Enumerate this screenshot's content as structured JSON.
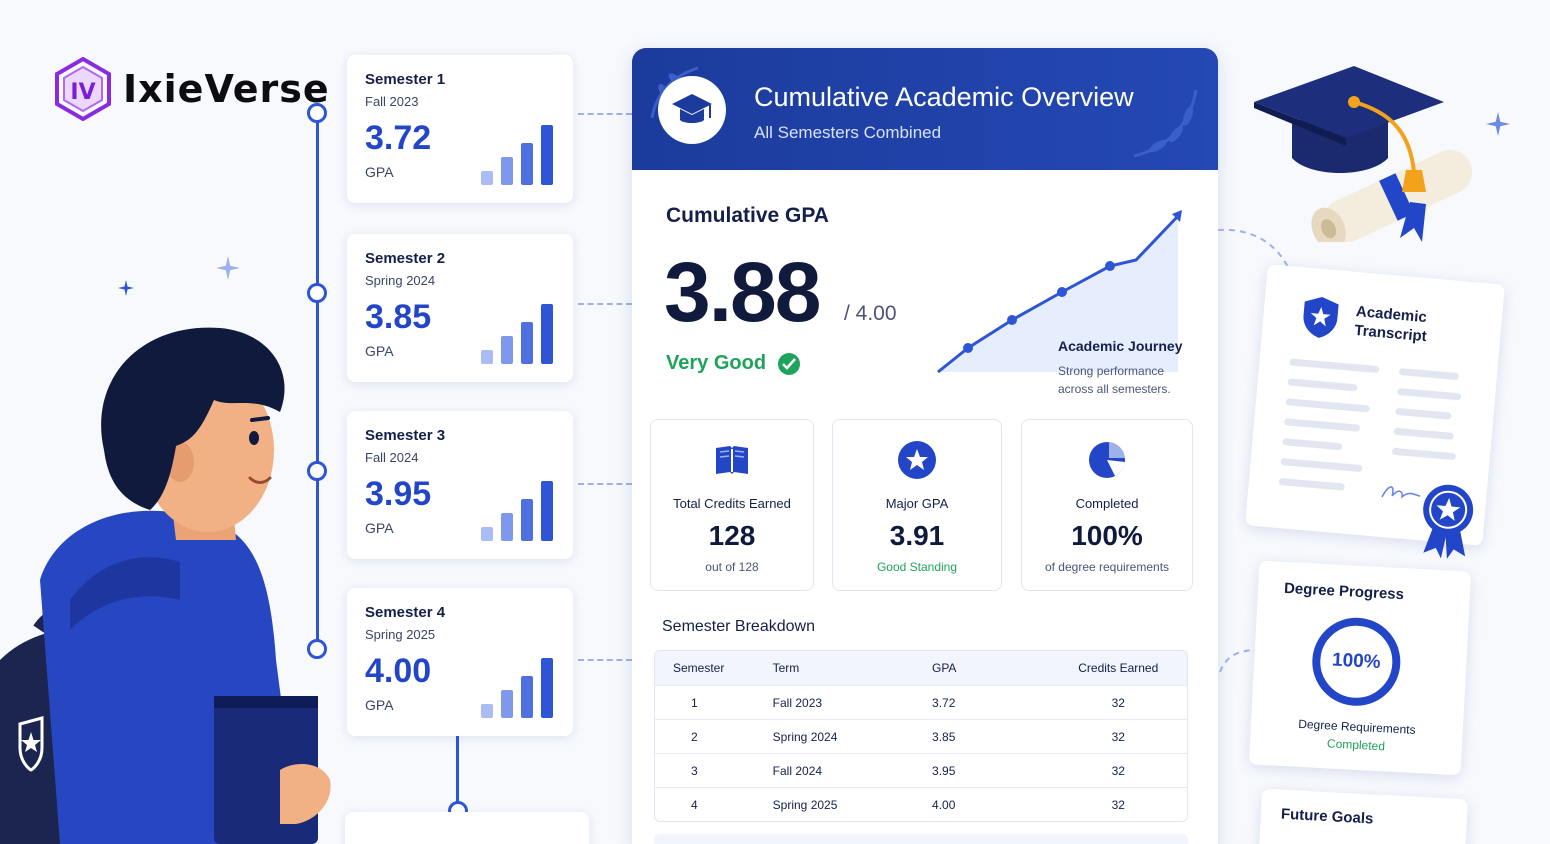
{
  "brand": {
    "name": "IxieVerse"
  },
  "semesters": [
    {
      "title": "Semester 1",
      "term": "Fall 2023",
      "gpa": "3.72",
      "gpa_label": "GPA"
    },
    {
      "title": "Semester 2",
      "term": "Spring 2024",
      "gpa": "3.85",
      "gpa_label": "GPA"
    },
    {
      "title": "Semester 3",
      "term": "Fall 2024",
      "gpa": "3.95",
      "gpa_label": "GPA"
    },
    {
      "title": "Semester 4",
      "term": "Spring 2025",
      "gpa": "4.00",
      "gpa_label": "GPA"
    }
  ],
  "overview": {
    "title": "Cumulative Academic Overview",
    "subtitle": "All Semesters Combined",
    "cumulative_label": "Cumulative GPA",
    "cumulative_value": "3.88",
    "cumulative_max": "/ 4.00",
    "rating": "Very Good",
    "journey_title": "Academic Journey",
    "journey_desc": "Strong performance across all semesters."
  },
  "stats": [
    {
      "label": "Total Credits Earned",
      "value": "128",
      "sub": "out of 128",
      "icon": "book-icon"
    },
    {
      "label": "Major GPA",
      "value": "3.91",
      "sub": "Good Standing",
      "icon": "star-badge-icon"
    },
    {
      "label": "Completed",
      "value": "100%",
      "sub": "of degree requirements",
      "icon": "pie-chart-icon"
    }
  ],
  "breakdown": {
    "title": "Semester Breakdown",
    "headers": [
      "Semester",
      "Term",
      "GPA",
      "Credits Earned"
    ],
    "rows": [
      [
        "1",
        "Fall 2023",
        "3.72",
        "32"
      ],
      [
        "2",
        "Spring 2024",
        "3.85",
        "32"
      ],
      [
        "3",
        "Fall 2024",
        "3.95",
        "32"
      ],
      [
        "4",
        "Spring 2025",
        "4.00",
        "32"
      ]
    ]
  },
  "transcript": {
    "title": "Academic Transcript"
  },
  "degree_progress": {
    "title": "Degree Progress",
    "percent": "100%",
    "label": "Degree Requirements",
    "status": "Completed"
  },
  "future_goals": {
    "title": "Future Goals"
  },
  "colors": {
    "primary": "#2346c8",
    "header": "#1c3b9c",
    "success": "#1ea35c",
    "logo": "#8a2be2"
  }
}
